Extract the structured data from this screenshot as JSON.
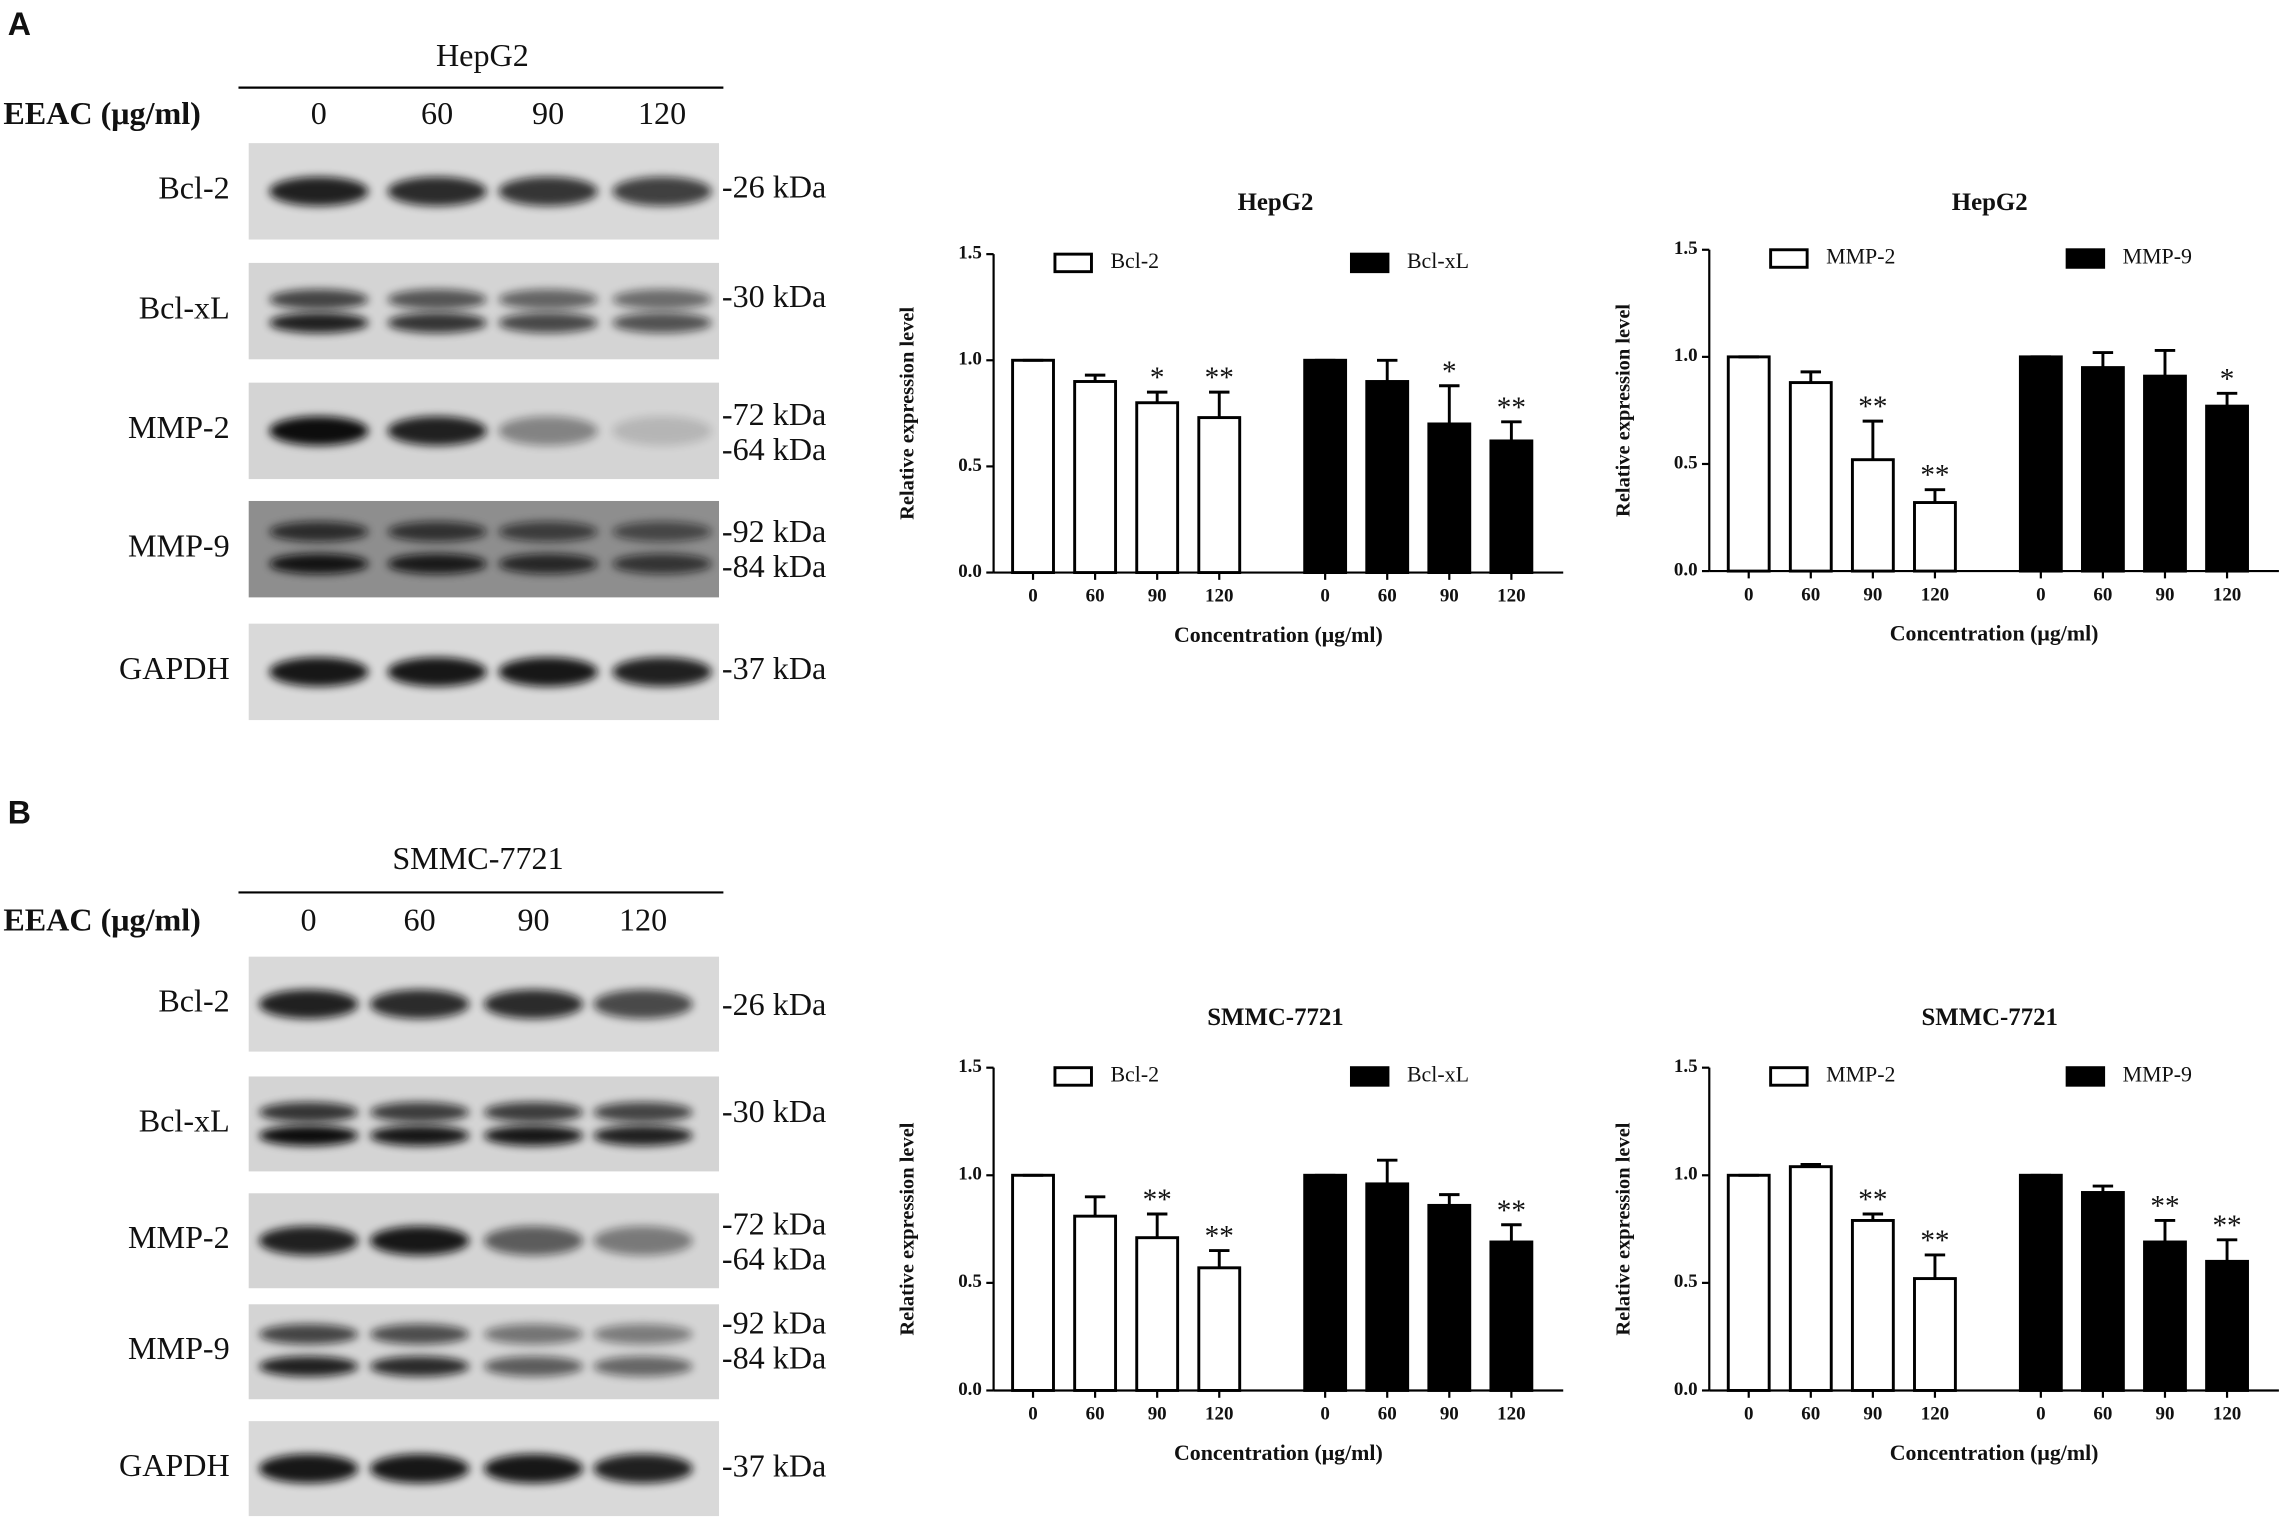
{
  "panels": [
    {
      "label": "A",
      "cell_line": "HepG2",
      "treatment_label": "EEAC (μg/ml)",
      "lanes": [
        "0",
        "60",
        "90",
        "120"
      ],
      "rows": [
        {
          "name": "Bcl-2",
          "markers": [
            "-26 kDa"
          ]
        },
        {
          "name": "Bcl-xL",
          "markers": [
            "-30 kDa"
          ]
        },
        {
          "name": "MMP-2",
          "markers": [
            "-72 kDa",
            "-64 kDa"
          ]
        },
        {
          "name": "MMP-9",
          "markers": [
            "-92 kDa",
            "-84 kDa"
          ]
        },
        {
          "name": "GAPDH",
          "markers": [
            "-37 kDa"
          ]
        }
      ]
    },
    {
      "label": "B",
      "cell_line": "SMMC-7721",
      "treatment_label": "EEAC (μg/ml)",
      "lanes": [
        "0",
        "60",
        "90",
        "120"
      ],
      "rows": [
        {
          "name": "Bcl-2",
          "markers": [
            "-26 kDa"
          ]
        },
        {
          "name": "Bcl-xL",
          "markers": [
            "-30 kDa"
          ]
        },
        {
          "name": "MMP-2",
          "markers": [
            "-72 kDa",
            "-64 kDa"
          ]
        },
        {
          "name": "MMP-9",
          "markers": [
            "-92 kDa",
            "-84 kDa"
          ]
        },
        {
          "name": "GAPDH",
          "markers": [
            "-37 kDa"
          ]
        }
      ]
    }
  ],
  "chart_data": [
    {
      "type": "bar",
      "title": "HepG2",
      "ylabel": "Relative expression level",
      "xlabel": "Concentration (μg/ml)",
      "categories": [
        "0",
        "60",
        "90",
        "120"
      ],
      "ylim": [
        0,
        1.5
      ],
      "yticks": [
        {
          "value": 0,
          "label": "0.0"
        },
        0.5,
        {
          "value": 1,
          "label": "1.0"
        },
        1.5
      ],
      "legend": "top",
      "series": [
        {
          "name": "Bcl-2",
          "color": "#ffffff",
          "values": [
            1.0,
            0.9,
            0.8,
            0.73
          ],
          "errors": [
            0,
            0.03,
            0.05,
            0.12
          ],
          "annotations": [
            null,
            null,
            "*",
            "**"
          ]
        },
        {
          "name": "Bcl-xL",
          "color": "#000000",
          "values": [
            1.0,
            0.9,
            0.7,
            0.62
          ],
          "errors": [
            0,
            0.1,
            0.18,
            0.09
          ],
          "annotations": [
            null,
            null,
            "*",
            "**"
          ]
        }
      ]
    },
    {
      "type": "bar",
      "title": "HepG2",
      "ylabel": "Relative expression level",
      "xlabel": "Concentration (μg/ml)",
      "categories": [
        "0",
        "60",
        "90",
        "120"
      ],
      "ylim": [
        0,
        1.5
      ],
      "yticks": [
        {
          "value": 0,
          "label": "0.0"
        },
        0.5,
        {
          "value": 1,
          "label": "1.0"
        },
        1.5
      ],
      "legend": "top",
      "series": [
        {
          "name": "MMP-2",
          "color": "#ffffff",
          "values": [
            1.0,
            0.88,
            0.52,
            0.32
          ],
          "errors": [
            0,
            0.05,
            0.18,
            0.06
          ],
          "annotations": [
            null,
            null,
            "**",
            "**"
          ]
        },
        {
          "name": "MMP-9",
          "color": "#000000",
          "values": [
            1.0,
            0.95,
            0.91,
            0.77
          ],
          "errors": [
            0,
            0.07,
            0.12,
            0.06
          ],
          "annotations": [
            null,
            null,
            null,
            "*"
          ]
        }
      ]
    },
    {
      "type": "bar",
      "title": "SMMC-7721",
      "ylabel": "Relative expression level",
      "xlabel": "Concentration (μg/ml)",
      "categories": [
        "0",
        "60",
        "90",
        "120"
      ],
      "ylim": [
        0,
        1.5
      ],
      "yticks": [
        {
          "value": 0,
          "label": "0.0"
        },
        0.5,
        {
          "value": 1,
          "label": "1.0"
        },
        1.5
      ],
      "legend": "top",
      "series": [
        {
          "name": "Bcl-2",
          "color": "#ffffff",
          "values": [
            1.0,
            0.81,
            0.71,
            0.57
          ],
          "errors": [
            0,
            0.09,
            0.11,
            0.08
          ],
          "annotations": [
            null,
            null,
            "**",
            "**"
          ]
        },
        {
          "name": "Bcl-xL",
          "color": "#000000",
          "values": [
            1.0,
            0.96,
            0.86,
            0.69
          ],
          "errors": [
            0,
            0.11,
            0.05,
            0.08
          ],
          "annotations": [
            null,
            null,
            null,
            "**"
          ]
        }
      ]
    },
    {
      "type": "bar",
      "title": "SMMC-7721",
      "ylabel": "Relative expression level",
      "xlabel": "Concentration (μg/ml)",
      "categories": [
        "0",
        "60",
        "90",
        "120"
      ],
      "ylim": [
        0,
        1.5
      ],
      "yticks": [
        {
          "value": 0,
          "label": "0.0"
        },
        0.5,
        {
          "value": 1,
          "label": "1.0"
        },
        1.5
      ],
      "legend": "top",
      "series": [
        {
          "name": "MMP-2",
          "color": "#ffffff",
          "values": [
            1.0,
            1.04,
            0.79,
            0.52
          ],
          "errors": [
            0,
            0.01,
            0.03,
            0.11
          ],
          "annotations": [
            null,
            null,
            "**",
            "**"
          ]
        },
        {
          "name": "MMP-9",
          "color": "#000000",
          "values": [
            1.0,
            0.92,
            0.69,
            0.6
          ],
          "errors": [
            0,
            0.03,
            0.1,
            0.1
          ],
          "annotations": [
            null,
            null,
            "**",
            "**"
          ]
        }
      ]
    }
  ]
}
